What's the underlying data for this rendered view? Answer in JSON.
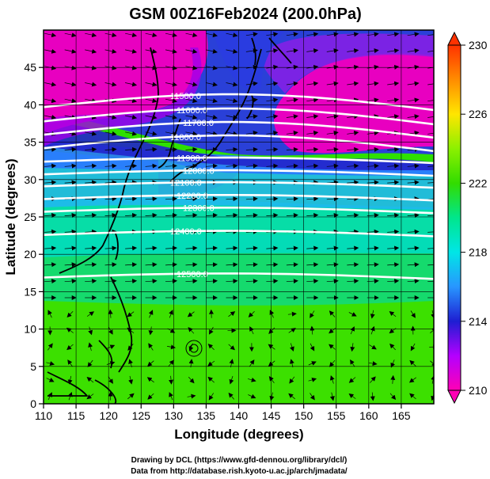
{
  "title": "GSM 00Z16Feb2024 (200.0hPa)",
  "xaxis": {
    "label": "Longitude (degrees)",
    "range": [
      110,
      170
    ],
    "ticks": [
      "110",
      "115",
      "120",
      "125",
      "130",
      "135",
      "140",
      "145",
      "150",
      "155",
      "160",
      "165"
    ]
  },
  "yaxis": {
    "label": "Latitude  (degrees)",
    "range": [
      0,
      50
    ],
    "ticks": [
      "0",
      "5",
      "10",
      "15",
      "20",
      "25",
      "30",
      "35",
      "40",
      "45"
    ]
  },
  "colorbar": {
    "range": [
      210,
      230
    ],
    "ticks": [
      "210",
      "214",
      "218",
      "222",
      "226",
      "230"
    ],
    "stops": [
      {
        "v": 210,
        "color": "#ff00b4"
      },
      {
        "v": 212,
        "color": "#b400ff"
      },
      {
        "v": 214,
        "color": "#1e1ed2"
      },
      {
        "v": 216,
        "color": "#2896ff"
      },
      {
        "v": 218,
        "color": "#00e6e6"
      },
      {
        "v": 220,
        "color": "#00e68c"
      },
      {
        "v": 222,
        "color": "#32dc00"
      },
      {
        "v": 224,
        "color": "#8cf000"
      },
      {
        "v": 226,
        "color": "#ffe600"
      },
      {
        "v": 228,
        "color": "#ff8c00"
      },
      {
        "v": 230,
        "color": "#ff3200"
      }
    ]
  },
  "contours": [
    {
      "label": "11500.0",
      "lat": 39.5
    },
    {
      "label": "11600.0",
      "lat": 37.6
    },
    {
      "label": "11700.0",
      "lat": 35.8
    },
    {
      "label": "11800.0",
      "lat": 34.0
    },
    {
      "label": "11900.0",
      "lat": 32.3
    },
    {
      "label": "12000.0",
      "lat": 30.6
    },
    {
      "label": "12100.0",
      "lat": 29.0
    },
    {
      "label": "12200.0",
      "lat": 27.3
    },
    {
      "label": "12300.0",
      "lat": 25.6
    },
    {
      "label": "12400.0",
      "lat": 22.5
    },
    {
      "label": "12500.0",
      "lat": 16.8
    }
  ],
  "footer": {
    "line1": "Drawing by DCL (https://www.gfd-dennou.org/library/dcl/)",
    "line2": "Data from http://database.rish.kyoto-u.ac.jp/arch/jmadata/"
  }
}
